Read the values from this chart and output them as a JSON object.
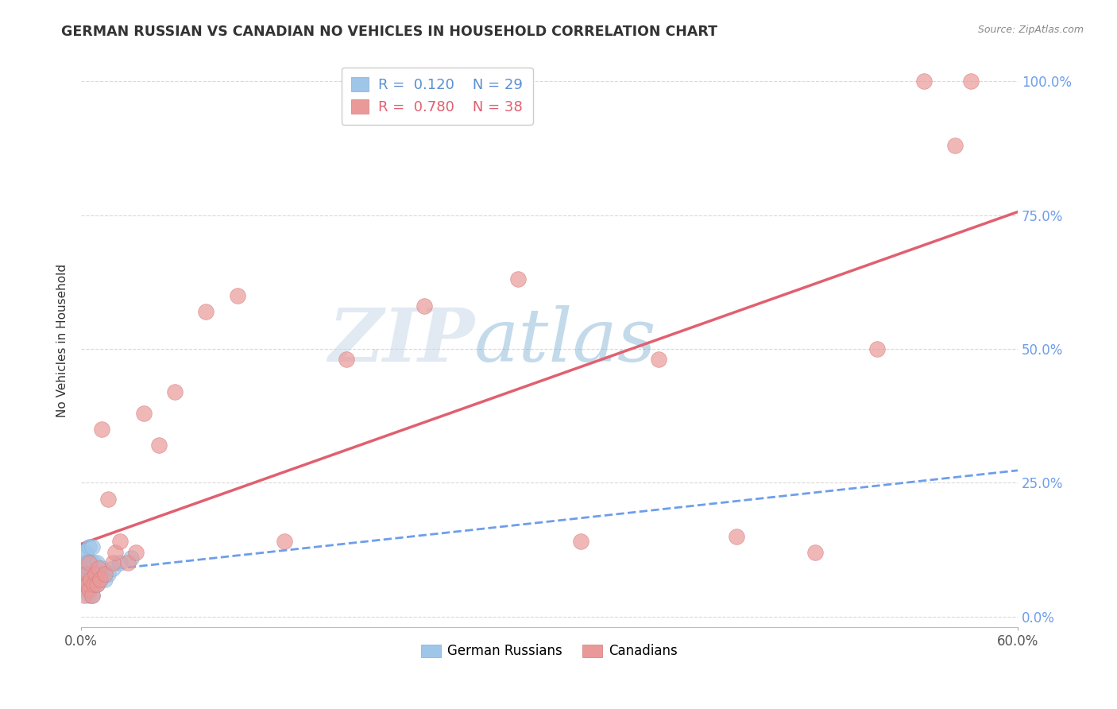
{
  "title": "GERMAN RUSSIAN VS CANADIAN NO VEHICLES IN HOUSEHOLD CORRELATION CHART",
  "source": "Source: ZipAtlas.com",
  "ylabel": "No Vehicles in Household",
  "watermark_zip": "ZIP",
  "watermark_atlas": "atlas",
  "color_blue": "#9fc5e8",
  "color_pink": "#ea9999",
  "color_blue_line": "#6d9eeb",
  "color_pink_line": "#e06070",
  "color_ytick": "#6d9eeb",
  "german_russian_x": [
    0.001,
    0.001,
    0.002,
    0.002,
    0.003,
    0.003,
    0.004,
    0.004,
    0.005,
    0.005,
    0.005,
    0.006,
    0.006,
    0.007,
    0.007,
    0.007,
    0.008,
    0.008,
    0.009,
    0.01,
    0.01,
    0.011,
    0.012,
    0.013,
    0.015,
    0.017,
    0.02,
    0.025,
    0.032
  ],
  "german_russian_y": [
    0.08,
    0.12,
    0.06,
    0.1,
    0.08,
    0.12,
    0.06,
    0.1,
    0.04,
    0.08,
    0.13,
    0.06,
    0.1,
    0.04,
    0.08,
    0.13,
    0.06,
    0.1,
    0.08,
    0.06,
    0.1,
    0.08,
    0.07,
    0.09,
    0.07,
    0.08,
    0.09,
    0.1,
    0.11
  ],
  "canadian_x": [
    0.001,
    0.002,
    0.003,
    0.004,
    0.005,
    0.005,
    0.006,
    0.007,
    0.008,
    0.009,
    0.01,
    0.011,
    0.012,
    0.013,
    0.015,
    0.017,
    0.02,
    0.022,
    0.025,
    0.03,
    0.035,
    0.04,
    0.05,
    0.06,
    0.08,
    0.1,
    0.13,
    0.17,
    0.22,
    0.28,
    0.32,
    0.37,
    0.42,
    0.47,
    0.51,
    0.54,
    0.56,
    0.57
  ],
  "canadian_y": [
    0.06,
    0.04,
    0.08,
    0.06,
    0.05,
    0.1,
    0.07,
    0.04,
    0.06,
    0.08,
    0.06,
    0.09,
    0.07,
    0.35,
    0.08,
    0.22,
    0.1,
    0.12,
    0.14,
    0.1,
    0.12,
    0.38,
    0.32,
    0.42,
    0.57,
    0.6,
    0.14,
    0.48,
    0.58,
    0.63,
    0.14,
    0.48,
    0.15,
    0.12,
    0.5,
    1.0,
    0.88,
    1.0
  ],
  "xlim": [
    0.0,
    0.6
  ],
  "ylim": [
    -0.02,
    1.05
  ],
  "background_color": "#ffffff",
  "grid_color": "#d9d9d9"
}
